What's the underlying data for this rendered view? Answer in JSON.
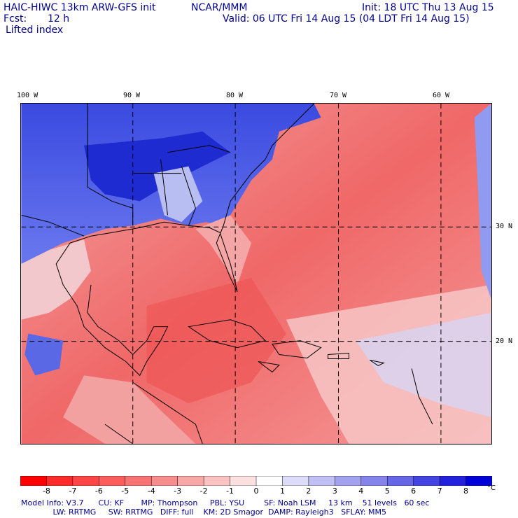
{
  "header": {
    "model": "HAIC-HIWC 13km ARW-GFS init",
    "center": "NCAR/MMM",
    "init": "Init: 18 UTC Thu 13 Aug 15",
    "fcst_label": "Fcst:",
    "fcst_value": "12 h",
    "valid": "Valid: 06 UTC Fri 14 Aug 15 (04 LDT Fri 14 Aug 15)",
    "field": "Lifted index"
  },
  "map": {
    "lon_labels": [
      "100 W",
      "90 W",
      "80 W",
      "70 W",
      "60 W"
    ],
    "lat_labels": [
      "30 N",
      "20 N"
    ],
    "colors": {
      "land_stable": "#2f3ddc",
      "ocean_unstable": "#f26a6a",
      "neutral": "#f7d2d2",
      "border": "#000000"
    }
  },
  "colorbar": {
    "ticks": [
      "-8",
      "-7",
      "-6",
      "-5",
      "-4",
      "-3",
      "-2",
      "-1",
      "0",
      "1",
      "2",
      "3",
      "4",
      "5",
      "6",
      "7",
      "8"
    ],
    "unit": "°C",
    "colors": [
      "#ff0000",
      "#ff2a2a",
      "#ff4545",
      "#ff5e5e",
      "#f87474",
      "#f78d8d",
      "#f9a8a8",
      "#fbc2c2",
      "#fde0e0",
      "#ffffff",
      "#dcdcf8",
      "#c0c0f4",
      "#a2a2ef",
      "#8484ea",
      "#6666e6",
      "#4444e0",
      "#2222dc",
      "#0000d8"
    ]
  },
  "model_info": {
    "line1": "Model Info: V3.7      CU: KF       MP: Thompson     PBL: YSU        SF: Noah LSM     13 km    51 levels   60 sec",
    "line2": "             LW: RRTMG     SW: RRTMG   DIFF: full    KM: 2D Smagor  DAMP: Rayleigh3   SFLAY: MM5"
  }
}
